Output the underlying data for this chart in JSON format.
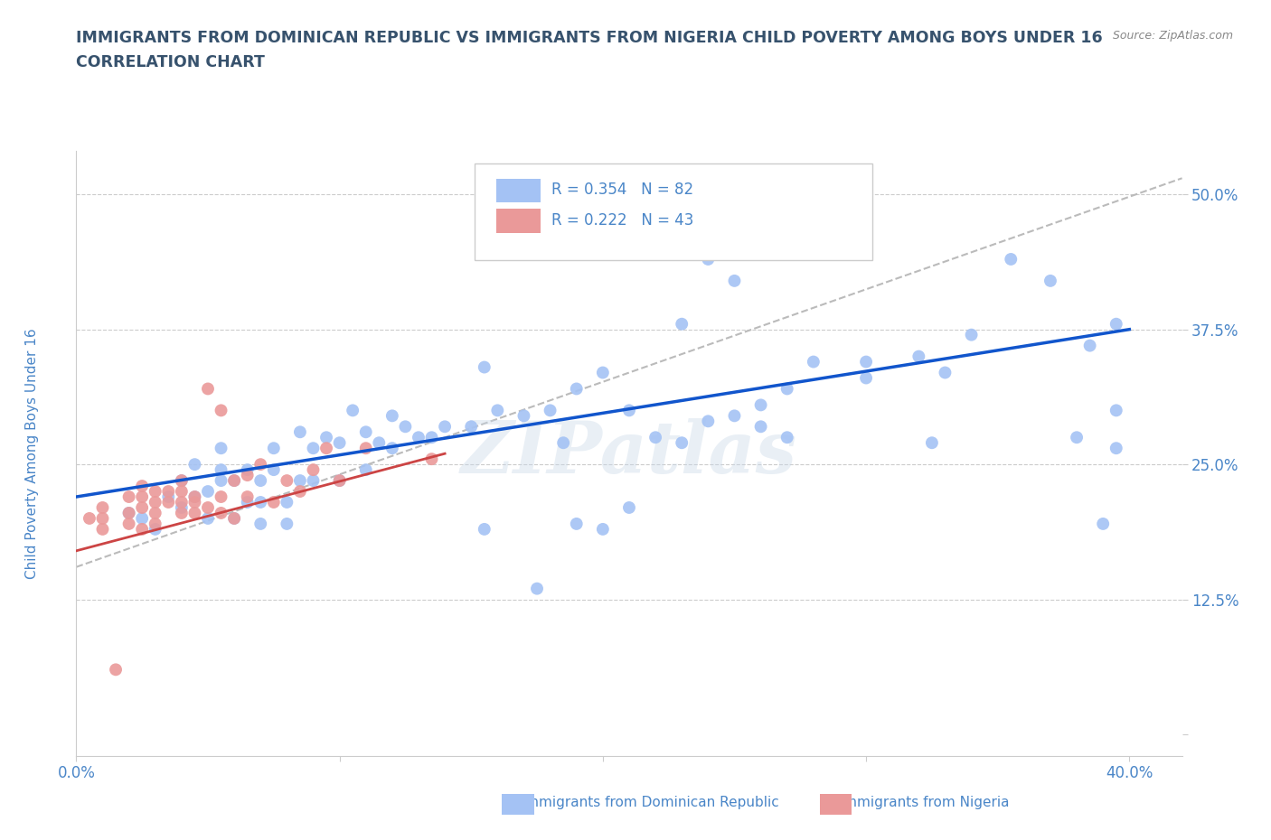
{
  "title_line1": "IMMIGRANTS FROM DOMINICAN REPUBLIC VS IMMIGRANTS FROM NIGERIA CHILD POVERTY AMONG BOYS UNDER 16",
  "title_line2": "CORRELATION CHART",
  "source_text": "Source: ZipAtlas.com",
  "ylabel": "Child Poverty Among Boys Under 16",
  "xlim": [
    0.0,
    0.42
  ],
  "ylim": [
    -0.02,
    0.54
  ],
  "xticks": [
    0.0,
    0.1,
    0.2,
    0.3,
    0.4
  ],
  "xticklabels": [
    "0.0%",
    "",
    "",
    "",
    "40.0%"
  ],
  "yticks": [
    0.0,
    0.125,
    0.25,
    0.375,
    0.5
  ],
  "yticklabels": [
    "",
    "12.5%",
    "25.0%",
    "37.5%",
    "50.0%"
  ],
  "color_blue": "#a4c2f4",
  "color_pink": "#ea9999",
  "trendline_blue": "#1155cc",
  "trendline_pink": "#cc4444",
  "trendline_gray": "#bbbbbb",
  "legend_r1": "R = 0.354",
  "legend_n1": "N = 82",
  "legend_r2": "R = 0.222",
  "legend_n2": "N = 43",
  "legend_label1": "Immigrants from Dominican Republic",
  "legend_label2": "Immigrants from Nigeria",
  "watermark": "ZIPatlas",
  "background_color": "#ffffff",
  "title_color": "#37526d",
  "axis_color": "#4a86c8",
  "blue_scatter_x": [
    0.02,
    0.025,
    0.03,
    0.035,
    0.04,
    0.04,
    0.045,
    0.045,
    0.05,
    0.05,
    0.055,
    0.055,
    0.055,
    0.06,
    0.06,
    0.065,
    0.065,
    0.07,
    0.07,
    0.07,
    0.075,
    0.075,
    0.08,
    0.08,
    0.085,
    0.085,
    0.09,
    0.09,
    0.095,
    0.1,
    0.1,
    0.105,
    0.11,
    0.11,
    0.115,
    0.12,
    0.12,
    0.125,
    0.13,
    0.135,
    0.14,
    0.15,
    0.16,
    0.17,
    0.18,
    0.19,
    0.2,
    0.21,
    0.22,
    0.23,
    0.24,
    0.25,
    0.26,
    0.27,
    0.28,
    0.3,
    0.32,
    0.33,
    0.34,
    0.355,
    0.37,
    0.385,
    0.395,
    0.2,
    0.21,
    0.155,
    0.19,
    0.155,
    0.165,
    0.175,
    0.185,
    0.23,
    0.24,
    0.25,
    0.26,
    0.27,
    0.3,
    0.325,
    0.38,
    0.395,
    0.395,
    0.39
  ],
  "blue_scatter_y": [
    0.205,
    0.2,
    0.19,
    0.22,
    0.21,
    0.235,
    0.22,
    0.25,
    0.225,
    0.2,
    0.235,
    0.245,
    0.265,
    0.2,
    0.235,
    0.215,
    0.245,
    0.195,
    0.215,
    0.235,
    0.245,
    0.265,
    0.195,
    0.215,
    0.235,
    0.28,
    0.235,
    0.265,
    0.275,
    0.235,
    0.27,
    0.3,
    0.245,
    0.28,
    0.27,
    0.265,
    0.295,
    0.285,
    0.275,
    0.275,
    0.285,
    0.285,
    0.3,
    0.295,
    0.3,
    0.32,
    0.335,
    0.3,
    0.275,
    0.27,
    0.29,
    0.295,
    0.305,
    0.32,
    0.345,
    0.33,
    0.35,
    0.335,
    0.37,
    0.44,
    0.42,
    0.36,
    0.3,
    0.19,
    0.21,
    0.19,
    0.195,
    0.34,
    0.47,
    0.135,
    0.27,
    0.38,
    0.44,
    0.42,
    0.285,
    0.275,
    0.345,
    0.27,
    0.275,
    0.265,
    0.38,
    0.195
  ],
  "pink_scatter_x": [
    0.005,
    0.01,
    0.01,
    0.01,
    0.015,
    0.02,
    0.02,
    0.02,
    0.025,
    0.025,
    0.025,
    0.025,
    0.03,
    0.03,
    0.03,
    0.03,
    0.035,
    0.035,
    0.04,
    0.04,
    0.04,
    0.04,
    0.045,
    0.045,
    0.045,
    0.05,
    0.05,
    0.055,
    0.055,
    0.055,
    0.06,
    0.06,
    0.065,
    0.065,
    0.07,
    0.075,
    0.08,
    0.085,
    0.09,
    0.095,
    0.1,
    0.11,
    0.135
  ],
  "pink_scatter_y": [
    0.2,
    0.19,
    0.2,
    0.21,
    0.06,
    0.195,
    0.205,
    0.22,
    0.19,
    0.21,
    0.22,
    0.23,
    0.195,
    0.205,
    0.215,
    0.225,
    0.215,
    0.225,
    0.205,
    0.215,
    0.225,
    0.235,
    0.205,
    0.215,
    0.22,
    0.21,
    0.32,
    0.205,
    0.22,
    0.3,
    0.2,
    0.235,
    0.22,
    0.24,
    0.25,
    0.215,
    0.235,
    0.225,
    0.245,
    0.265,
    0.235,
    0.265,
    0.255
  ],
  "blue_trend_x": [
    0.0,
    0.4
  ],
  "blue_trend_y": [
    0.22,
    0.375
  ],
  "pink_trend_x": [
    0.0,
    0.14
  ],
  "pink_trend_y": [
    0.17,
    0.26
  ],
  "gray_trend_x": [
    0.0,
    0.42
  ],
  "gray_trend_y": [
    0.155,
    0.515
  ]
}
